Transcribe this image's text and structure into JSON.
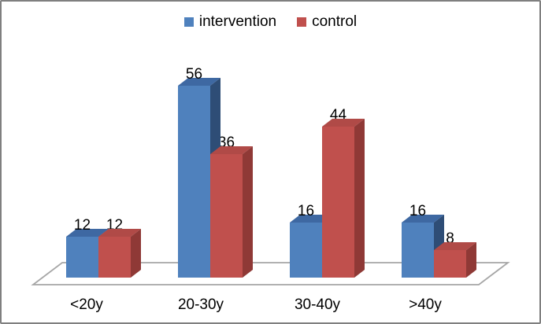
{
  "chart_data": {
    "type": "bar",
    "style": "3d-clustered-column",
    "title": "",
    "categories": [
      "<20y",
      "20-30y",
      "30-40y",
      ">40y"
    ],
    "series": [
      {
        "name": "intervention",
        "values": [
          12,
          56,
          16,
          16
        ],
        "color": "#4f81bd",
        "color_top": "#3e68a2",
        "color_side": "#2e4d76"
      },
      {
        "name": "control",
        "values": [
          12,
          36,
          44,
          8
        ],
        "color": "#c0504d",
        "color_top": "#b04a47",
        "color_side": "#8f3936"
      }
    ],
    "value_labels": [
      [
        "12",
        "56",
        "16",
        "16"
      ],
      [
        "12",
        "36",
        "44",
        "8"
      ]
    ],
    "legend_position": "top",
    "axes_visible": false,
    "gridlines": false,
    "floor_line_color": "#a6a6a6",
    "frame_border_color": "#7f7f7f",
    "text_color": "#000000"
  }
}
